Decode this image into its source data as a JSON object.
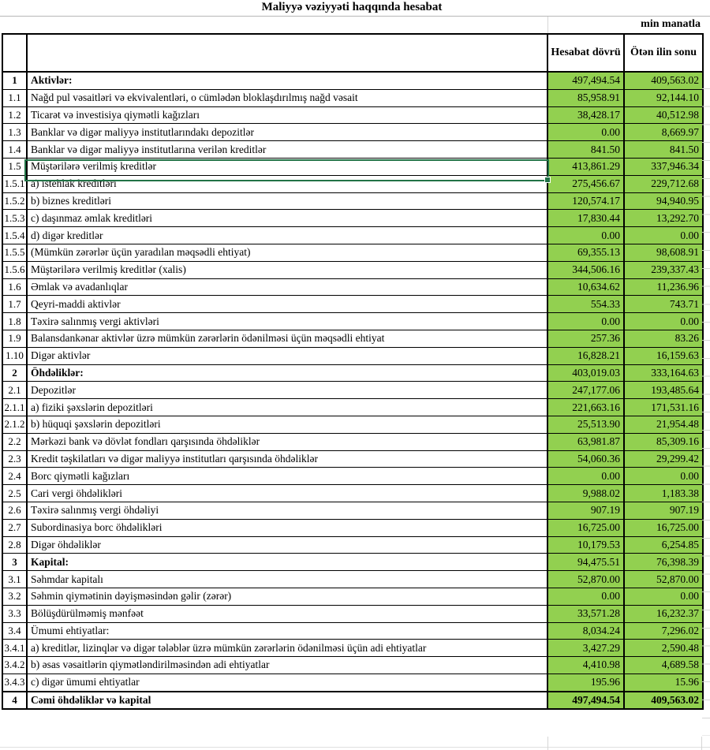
{
  "sheet": {
    "title": "Maliyyə vəziyyəti haqqında hesabat",
    "unit_label": "min manatla"
  },
  "colors": {
    "value_cell_fill": "#92D050",
    "selection_border": "#217346",
    "table_border": "#000000",
    "gridline": "#D6D6D6"
  },
  "table": {
    "headers": {
      "row_no": "",
      "indicator": "",
      "current_period": "Hesabat dövrü",
      "previous_year_end": "Ötən ilin sonu"
    },
    "selection": {
      "row_no": "1.5",
      "cell": "indicator"
    },
    "rows": [
      {
        "no": "1",
        "label": "Aktivlər:",
        "current": "497,494.54",
        "previous": "409,563.02",
        "bold": true
      },
      {
        "no": "1.1",
        "label": "Nağd pul vəsaitləri və  ekvivalentləri, o cümlədən bloklaşdırılmış nağd vəsait",
        "current": "85,958.91",
        "previous": "92,144.10"
      },
      {
        "no": "1.2",
        "label": "Ticarət və investisiya qiymətli kağızları",
        "current": "38,428.17",
        "previous": "40,512.98"
      },
      {
        "no": "1.3",
        "label": "Banklar və digər maliyyə institutlarındakı depozitlər",
        "current": "0.00",
        "previous": "8,669.97"
      },
      {
        "no": "1.4",
        "label": "Banklar və digər maliyyə institutlarına verilən kreditlər",
        "current": "841.50",
        "previous": "841.50"
      },
      {
        "no": "1.5",
        "label": "Müştərilərə verilmiş kreditlər",
        "current": "413,861.29",
        "previous": "337,946.34",
        "selected": true
      },
      {
        "no": "1.5.1",
        "label": "a) istehlak kreditləri",
        "current": "275,456.67",
        "previous": "229,712.68"
      },
      {
        "no": "1.5.2",
        "label": "b) biznes kreditləri",
        "current": "120,574.17",
        "previous": "94,940.95"
      },
      {
        "no": "1.5.3",
        "label": "c) daşınmaz əmlak kreditləri",
        "current": "17,830.44",
        "previous": "13,292.70"
      },
      {
        "no": "1.5.4",
        "label": "d) digər kreditlər",
        "current": "0.00",
        "previous": "0.00"
      },
      {
        "no": "1.5.5",
        "label": "(Mümkün zərərlər üçün yaradılan məqsədli ehtiyat)",
        "current": "69,355.13",
        "previous": "98,608.91"
      },
      {
        "no": "1.5.6",
        "label": "Müştərilərə verilmiş kreditlər (xalis)",
        "current": "344,506.16",
        "previous": "239,337.43"
      },
      {
        "no": "1.6",
        "label": "Əmlak və avadanlıqlar",
        "current": "10,634.62",
        "previous": "11,236.96"
      },
      {
        "no": "1.7",
        "label": "Qeyri-maddi aktivlər",
        "current": "554.33",
        "previous": "743.71"
      },
      {
        "no": "1.8",
        "label": "Təxirə salınmış vergi aktivləri",
        "current": "0.00",
        "previous": "0.00"
      },
      {
        "no": "1.9",
        "label": "Balansdankənar aktivlər üzrə mümkün zərərlərin ödənilməsi üçün məqsədli ehtiyat",
        "current": "257.36",
        "previous": "83.26"
      },
      {
        "no": "1.10",
        "label": "Digər aktivlər",
        "current": "16,828.21",
        "previous": "16,159.63"
      },
      {
        "no": "2",
        "label": "Öhdəliklər:",
        "current": "403,019.03",
        "previous": "333,164.63",
        "bold": true
      },
      {
        "no": "2.1",
        "label": "Depozitlər",
        "current": "247,177.06",
        "previous": "193,485.64"
      },
      {
        "no": "2.1.1",
        "label": "a) fiziki şəxslərin depozitləri",
        "current": "221,663.16",
        "previous": "171,531.16"
      },
      {
        "no": "2.1.2",
        "label": "b) hüquqi şəxslərin depozitləri",
        "current": "25,513.90",
        "previous": "21,954.48"
      },
      {
        "no": "2.2",
        "label": "Mərkəzi bank və dövlət fondları qarşısında öhdəliklər",
        "current": "63,981.87",
        "previous": "85,309.16"
      },
      {
        "no": "2.3",
        "label": "Kredit təşkilatları və digər maliyyə institutları qarşısında öhdəliklər",
        "current": "54,060.36",
        "previous": "29,299.42"
      },
      {
        "no": "2.4",
        "label": "Borc qiymətli kağızları",
        "current": "0.00",
        "previous": "0.00"
      },
      {
        "no": "2.5",
        "label": "Cari vergi öhdəlikləri",
        "current": "9,988.02",
        "previous": "1,183.38"
      },
      {
        "no": "2.6",
        "label": "Təxirə salınmış vergi öhdəliyi",
        "current": "907.19",
        "previous": "907.19"
      },
      {
        "no": "2.7",
        "label": "Subordinasiya borc öhdəlikləri",
        "current": "16,725.00",
        "previous": "16,725.00"
      },
      {
        "no": "2.8",
        "label": "Digər öhdəliklər",
        "current": "10,179.53",
        "previous": "6,254.85"
      },
      {
        "no": "3",
        "label": "Kapital:",
        "current": "94,475.51",
        "previous": "76,398.39",
        "bold": true
      },
      {
        "no": "3.1",
        "label": "Səhmdar kapitalı",
        "current": "52,870.00",
        "previous": "52,870.00"
      },
      {
        "no": "3.2",
        "label": "Səhmin qiymətinin dəyişməsindən gəlir (zərər)",
        "current": "0.00",
        "previous": "0.00"
      },
      {
        "no": "3.3",
        "label": "Bölüşdürülməmiş mənfəət",
        "current": "33,571.28",
        "previous": "16,232.37"
      },
      {
        "no": "3.4",
        "label": "Ümumi ehtiyatlar:",
        "current": "8,034.24",
        "previous": "7,296.02"
      },
      {
        "no": "3.4.1",
        "label": "a) kreditlər, lizinqlər və digər tələblər üzrə mümkün zərərlərin ödənilməsi üçün adi ehtiyatlar",
        "current": "3,427.29",
        "previous": "2,590.48"
      },
      {
        "no": "3.4.2",
        "label": "b) əsas vəsaitlərin qiymətləndirilməsindən adi ehtiyatlar",
        "current": "4,410.98",
        "previous": "4,689.58"
      },
      {
        "no": "3.4.3",
        "label": "c) digər ümumi ehtiyatlar",
        "current": "195.96",
        "previous": "15.96"
      },
      {
        "no": "4",
        "label": "Cəmi öhdəliklər və kapital",
        "current": "497,494.54",
        "previous": "409,563.02",
        "bold": true,
        "total": true
      }
    ]
  }
}
